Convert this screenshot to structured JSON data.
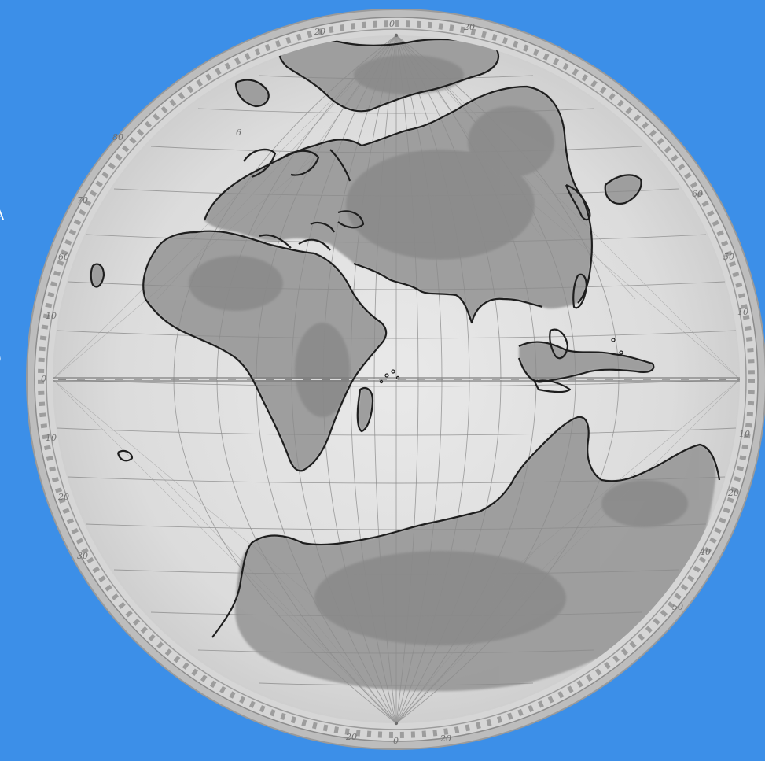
{
  "page": {
    "background_color": "#3c8fe8"
  },
  "side_text": {
    "line1": "IA",
    "line2": "o"
  },
  "map": {
    "style": "old-world hemisphere, grayscale hand-drawn",
    "frame_color": "#a9a9a9",
    "land_color": "#8d8d8d",
    "sea_color": "#dedede",
    "coast_color": "#1e1e1e",
    "grid_color": "#8a8a8a",
    "equator_color": "#7b7b7b"
  },
  "rim_labels": [
    "80",
    "70",
    "60",
    "50",
    "40",
    "30",
    "20",
    "10",
    "0",
    "10",
    "20",
    "30",
    "40",
    "50",
    "60",
    "70",
    "80"
  ],
  "margin_notes": [
    "6"
  ]
}
